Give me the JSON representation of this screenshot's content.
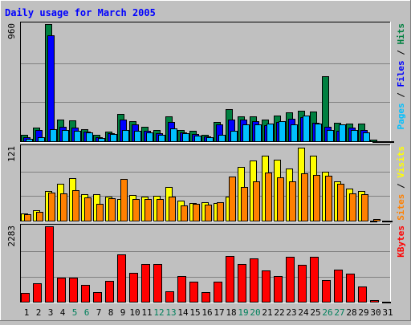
{
  "chart_data": {
    "type": "bar",
    "title": "Daily usage for March 2005",
    "categories": [
      "1",
      "2",
      "3",
      "4",
      "5",
      "6",
      "7",
      "8",
      "9",
      "10",
      "11",
      "12",
      "13",
      "14",
      "15",
      "16",
      "17",
      "18",
      "19",
      "20",
      "21",
      "22",
      "23",
      "24",
      "25",
      "26",
      "27",
      "28",
      "29",
      "30",
      "31"
    ],
    "weekend_days": [
      "5",
      "6",
      "12",
      "13",
      "19",
      "20",
      "26",
      "27"
    ],
    "panels": [
      {
        "id": "hits_files_pages",
        "ymax_label": "960",
        "ylim": [
          0,
          960
        ],
        "right_label": {
          "hits": "Hits",
          "files": "Files",
          "pages": "Pages",
          "sep": " / "
        },
        "series": [
          {
            "name": "Hits",
            "color": "#008040",
            "values": [
              55,
              110,
              960,
              175,
              170,
              100,
              55,
              80,
              225,
              165,
              120,
              95,
              205,
              95,
              85,
              55,
              160,
              265,
              205,
              205,
              180,
              210,
              235,
              250,
              240,
              530,
              150,
              145,
              145,
              15,
              0
            ]
          },
          {
            "name": "Files",
            "color": "#0000ff",
            "values": [
              30,
              95,
              865,
              120,
              115,
              80,
              30,
              65,
              175,
              135,
              85,
              65,
              155,
              70,
              60,
              40,
              135,
              180,
              180,
              165,
              130,
              160,
              185,
              200,
              150,
              120,
              85,
              115,
              95,
              0,
              0
            ]
          },
          {
            "name": "Pages",
            "color": "#00c0ff",
            "values": [
              20,
              35,
              100,
              95,
              85,
              70,
              25,
              60,
              95,
              85,
              70,
              50,
              105,
              65,
              45,
              35,
              55,
              85,
              140,
              135,
              145,
              165,
              140,
              210,
              145,
              90,
              140,
              95,
              70,
              0,
              0
            ]
          }
        ]
      },
      {
        "id": "visits_sites",
        "ymax_label": "121",
        "ylim": [
          0,
          121
        ],
        "right_label": {
          "visits": "Visits",
          "sites": "Sites",
          "sep": " / "
        },
        "series": [
          {
            "name": "Visits",
            "color": "#ffff00",
            "values": [
              12,
              17,
              49,
              61,
              70,
              44,
              44,
              40,
              36,
              42,
              40,
              41,
              55,
              33,
              29,
              30,
              29,
              40,
              88,
              98,
              107,
              100,
              86,
              120,
              106,
              80,
              65,
              53,
              49,
              0,
              0
            ]
          },
          {
            "name": "Sites",
            "color": "#ff8000",
            "values": [
              10,
              14,
              46,
              45,
              50,
              38,
              28,
              37,
              69,
              35,
              36,
              36,
              40,
              25,
              27,
              26,
              30,
              72,
              55,
              65,
              79,
              71,
              64,
              78,
              75,
              74,
              61,
              45,
              44,
              3,
              0
            ]
          }
        ]
      },
      {
        "id": "kbytes",
        "ymax_label": "2283",
        "ylim": [
          0,
          2283
        ],
        "right_label": {
          "kbytes": "KBytes"
        },
        "series": [
          {
            "name": "KBytes",
            "color": "#ff0000",
            "values": [
              260,
              560,
              2283,
              730,
              730,
              520,
              280,
              640,
              1440,
              880,
              1150,
              1150,
              320,
              780,
              600,
              300,
              610,
              1380,
              1150,
              1300,
              940,
              780,
              1350,
              1110,
              1350,
              660,
              980,
              840,
              450,
              40,
              0
            ]
          }
        ]
      }
    ]
  },
  "colors": {
    "background": "#c0c0c0",
    "title": "#0000ff",
    "grid": "#808080",
    "hits": "#008040",
    "files": "#0000ff",
    "pages": "#00c0ff",
    "visits": "#ffff00",
    "sites": "#ff8000",
    "kbytes": "#ff0000",
    "weekday_label": "#000000",
    "weekend_label": "#00805c"
  }
}
